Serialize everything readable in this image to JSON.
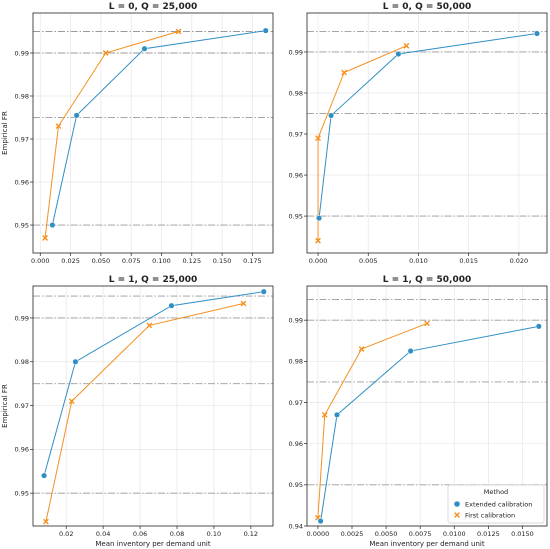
{
  "figure": {
    "legend": {
      "title": "Method",
      "placement": "lower-right",
      "entries": [
        {
          "label": "Extended calibration",
          "marker": "circle",
          "color": "#2f8fc4"
        },
        {
          "label": "First calibration",
          "marker": "x",
          "color": "#f5901e"
        }
      ]
    }
  },
  "chart_data": [
    {
      "type": "line",
      "title": "L = 0, Q = 25,000",
      "xlabel": "",
      "ylabel": "Empirical FR",
      "xlim": [
        -0.006,
        0.192
      ],
      "ylim": [
        0.9435,
        0.9993
      ],
      "xticks": [
        0.0,
        0.025,
        0.05,
        0.075,
        0.1,
        0.125,
        0.15,
        0.175
      ],
      "xtick_labels": [
        "0.000",
        "0.025",
        "0.050",
        "0.075",
        "0.100",
        "0.125",
        "0.150",
        "0.175"
      ],
      "yticks": [
        0.95,
        0.96,
        0.97,
        0.98,
        0.99
      ],
      "ytick_labels": [
        "0.95",
        "0.96",
        "0.97",
        "0.98",
        "0.99"
      ],
      "reference_lines": [
        0.95,
        0.975,
        0.99,
        0.995
      ],
      "grid": true,
      "series": [
        {
          "name": "Extended calibration",
          "color": "#2f8fc4",
          "marker": "circle",
          "x": [
            0.01,
            0.03,
            0.086,
            0.186
          ],
          "y": [
            0.95,
            0.9755,
            0.991,
            0.9952
          ]
        },
        {
          "name": "First calibration",
          "color": "#f5901e",
          "marker": "x",
          "x": [
            0.004,
            0.015,
            0.054,
            0.114
          ],
          "y": [
            0.947,
            0.973,
            0.99,
            0.995
          ]
        }
      ]
    },
    {
      "type": "line",
      "title": "L = 0, Q = 50,000",
      "xlabel": "",
      "ylabel": "",
      "xlim": [
        -0.0011,
        0.0228
      ],
      "ylim": [
        0.941,
        0.9995
      ],
      "xticks": [
        0.0,
        0.005,
        0.01,
        0.015,
        0.02
      ],
      "xtick_labels": [
        "0.000",
        "0.005",
        "0.010",
        "0.015",
        "0.020"
      ],
      "yticks": [
        0.95,
        0.96,
        0.97,
        0.98,
        0.99
      ],
      "ytick_labels": [
        "0.95",
        "0.96",
        "0.97",
        "0.98",
        "0.99"
      ],
      "reference_lines": [
        0.95,
        0.975,
        0.99,
        0.995
      ],
      "grid": true,
      "series": [
        {
          "name": "Extended calibration",
          "color": "#2f8fc4",
          "marker": "circle",
          "x": [
            0.0001,
            0.0013,
            0.008,
            0.0218
          ],
          "y": [
            0.9495,
            0.9745,
            0.9895,
            0.9945
          ]
        },
        {
          "name": "First calibration",
          "color": "#f5901e",
          "marker": "x",
          "x": [
            0.0,
            0.0,
            0.0026,
            0.0088
          ],
          "y": [
            0.944,
            0.969,
            0.985,
            0.9915
          ]
        }
      ]
    },
    {
      "type": "line",
      "title": "L = 1, Q = 25,000",
      "xlabel": "Mean inventory per demand unit",
      "ylabel": "Empirical FR",
      "xlim": [
        0.002,
        0.132
      ],
      "ylim": [
        0.9425,
        0.9973
      ],
      "xticks": [
        0.02,
        0.04,
        0.06,
        0.08,
        0.1,
        0.12
      ],
      "xtick_labels": [
        "0.02",
        "0.04",
        "0.06",
        "0.08",
        "0.10",
        "0.12"
      ],
      "yticks": [
        0.95,
        0.96,
        0.97,
        0.98,
        0.99
      ],
      "ytick_labels": [
        "0.95",
        "0.96",
        "0.97",
        "0.98",
        "0.99"
      ],
      "reference_lines": [
        0.95,
        0.975,
        0.99,
        0.995
      ],
      "grid": true,
      "series": [
        {
          "name": "Extended calibration",
          "color": "#2f8fc4",
          "marker": "circle",
          "x": [
            0.008,
            0.025,
            0.077,
            0.127
          ],
          "y": [
            0.954,
            0.98,
            0.9928,
            0.996
          ]
        },
        {
          "name": "First calibration",
          "color": "#f5901e",
          "marker": "x",
          "x": [
            0.009,
            0.023,
            0.065,
            0.116
          ],
          "y": [
            0.9435,
            0.971,
            0.9883,
            0.9933
          ]
        }
      ]
    },
    {
      "type": "line",
      "title": "L = 1, Q = 50,000",
      "xlabel": "Mean inventory per demand unit",
      "ylabel": "",
      "xlim": [
        -0.0008,
        0.0168
      ],
      "ylim": [
        0.94,
        0.9983
      ],
      "xticks": [
        0.0,
        0.0025,
        0.005,
        0.0075,
        0.01,
        0.0125,
        0.015
      ],
      "xtick_labels": [
        "0.0000",
        "0.0025",
        "0.0050",
        "0.0075",
        "0.0100",
        "0.0125",
        "0.0150"
      ],
      "yticks": [
        0.94,
        0.95,
        0.96,
        0.97,
        0.98,
        0.99
      ],
      "ytick_labels": [
        "0.94",
        "0.95",
        "0.96",
        "0.97",
        "0.98",
        "0.99"
      ],
      "reference_lines": [
        0.95,
        0.975,
        0.99,
        0.995
      ],
      "grid": true,
      "series": [
        {
          "name": "Extended calibration",
          "color": "#2f8fc4",
          "marker": "circle",
          "x": [
            0.0002,
            0.0014,
            0.0068,
            0.0162
          ],
          "y": [
            0.9412,
            0.967,
            0.9825,
            0.9885
          ]
        },
        {
          "name": "First calibration",
          "color": "#f5901e",
          "marker": "x",
          "x": [
            0.0,
            0.0005,
            0.0032,
            0.008
          ],
          "y": [
            0.942,
            0.967,
            0.983,
            0.9892
          ]
        }
      ]
    }
  ]
}
